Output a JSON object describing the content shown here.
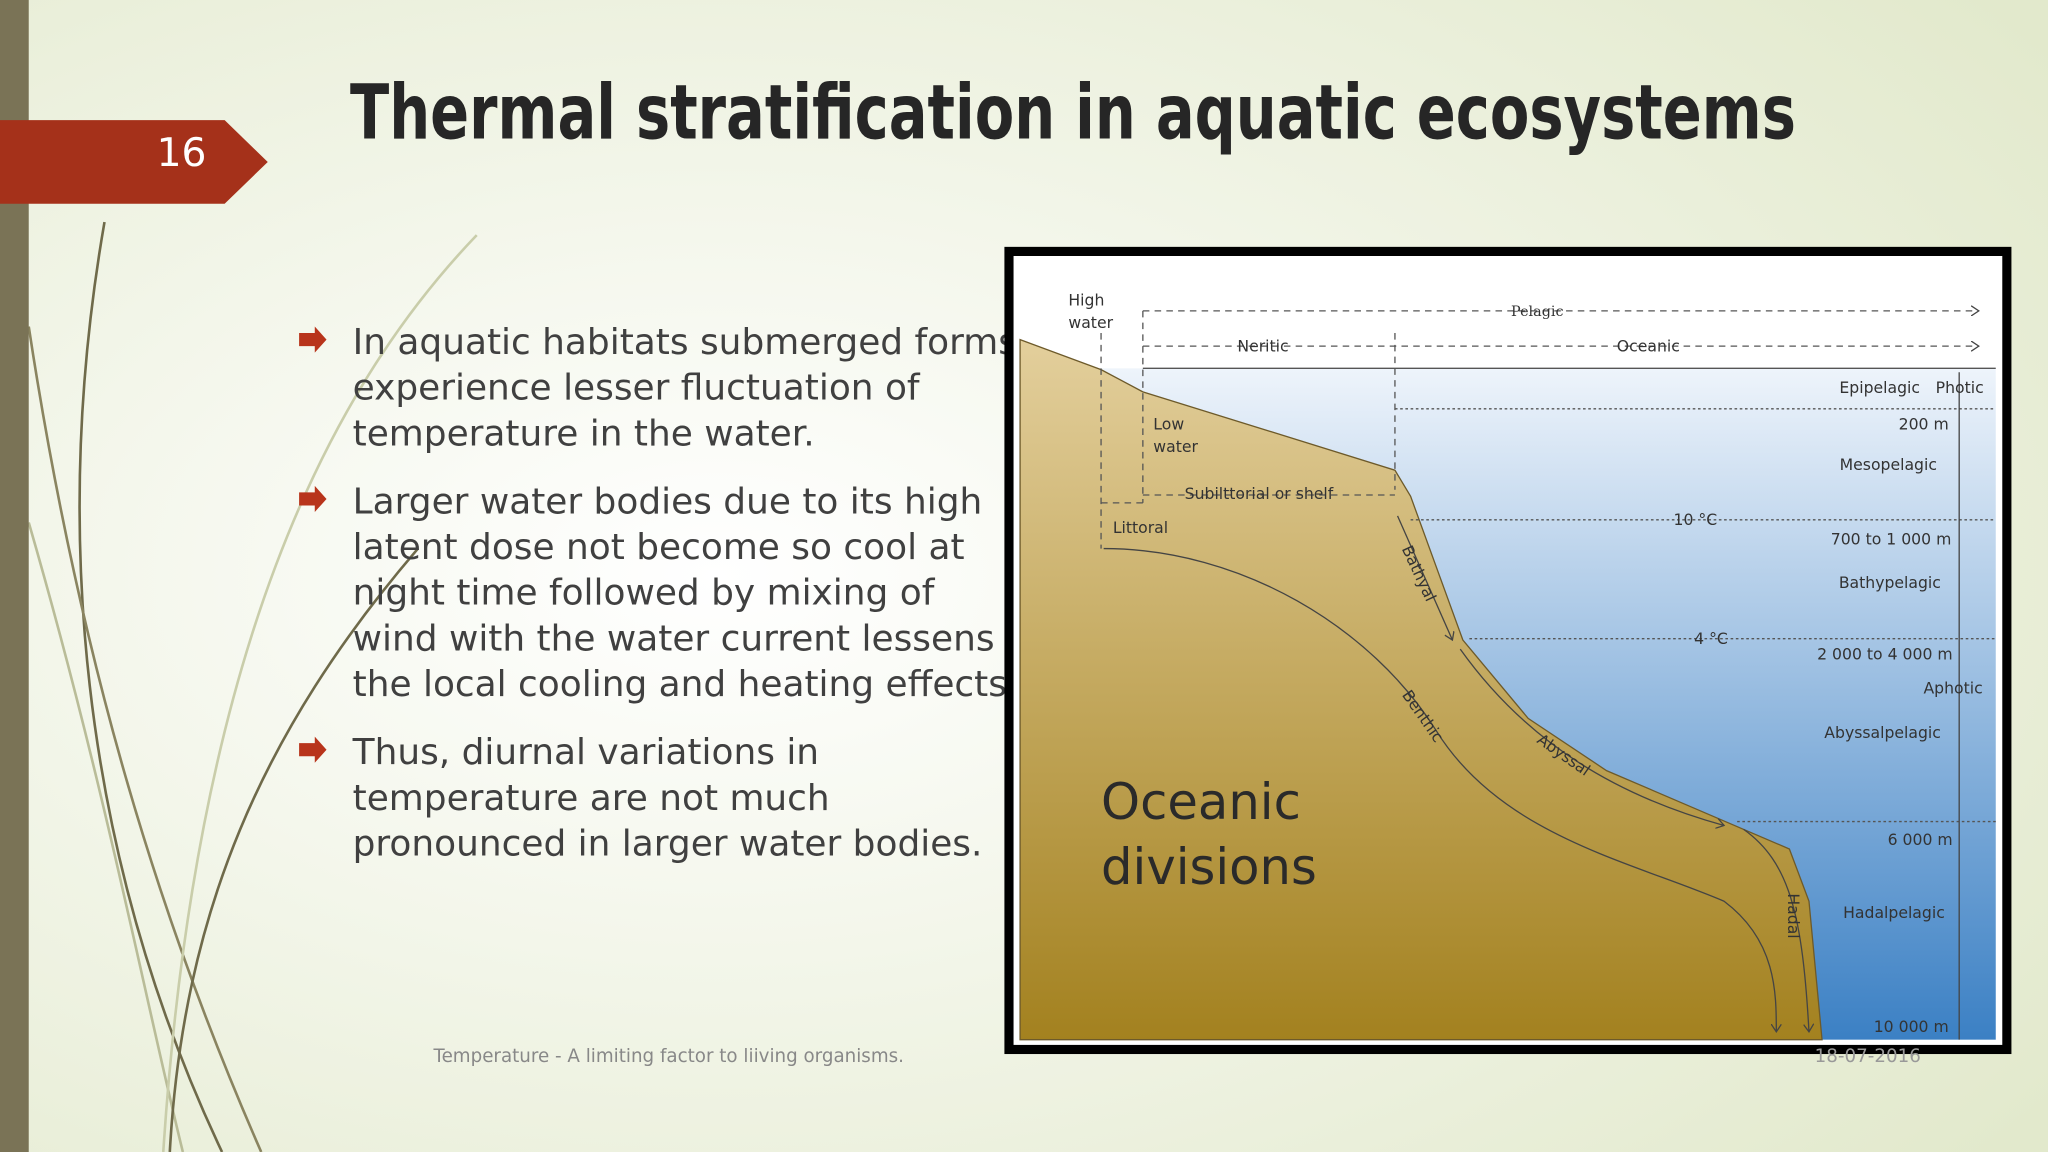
{
  "slide_number": "16",
  "title": "Thermal stratification in aquatic ecosystems",
  "bullets": [
    [
      "In aquatic habitats submerged forms",
      "experience lesser fluctuation of",
      "temperature in the water."
    ],
    [
      "Larger water bodies due to its high",
      "latent dose not become so cool at",
      "night time followed by mixing of",
      "wind with the water current lessens",
      "the local cooling and heating effects."
    ],
    [
      "Thus, diurnal variations in",
      "temperature are not much",
      "pronounced in larger water bodies."
    ]
  ],
  "footer": "Temperature - A limiting factor to liiving organisms.",
  "date": "18-07-2016",
  "diagram": {
    "high_water": [
      "High",
      "water"
    ],
    "pelagic": "Pelagic",
    "neritic": "Neritic",
    "oceanic": "Oceanic",
    "epipelagic": "Epipelagic",
    "photic": "Photic",
    "depth_200": "200 m",
    "low_water": [
      "Low",
      "water"
    ],
    "mesopelagic": "Mesopelagic",
    "sublittoral": "Subilttorial or shelf",
    "littoral": "Littoral",
    "temp_10": "10 °C",
    "depth_700": "700 to 1 000 m",
    "bathyal": "Bathyal",
    "bathypelagic": "Bathypelagic",
    "temp_4": "4 °C",
    "depth_2000": "2 000 to 4 000 m",
    "aphotic": "Aphotic",
    "benthic": "Benthic",
    "abyssal": "Abyssal",
    "abyssalpelagic": "Abyssalpelagic",
    "caption": [
      "Oceanic",
      "divisions"
    ],
    "depth_6000": "6 000 m",
    "hadalpelagic": "Hadalpelagic",
    "hadal": "Hadal",
    "depth_10000": "10 000 m"
  }
}
